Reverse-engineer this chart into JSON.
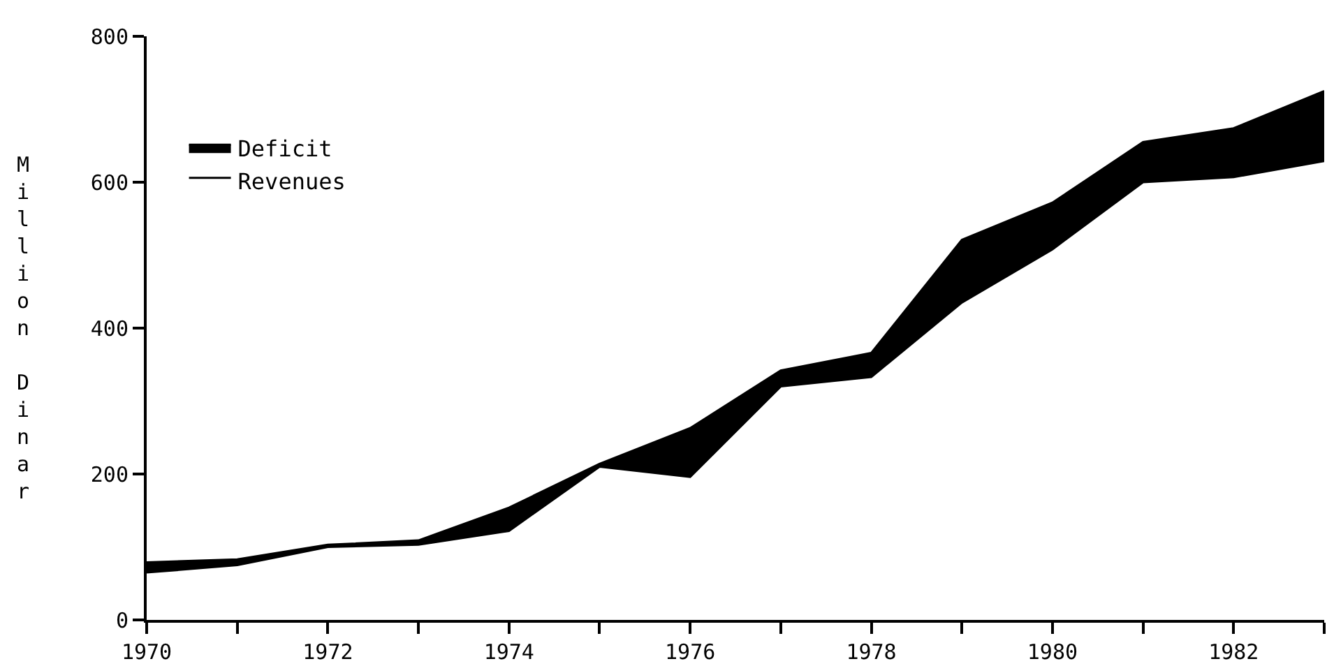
{
  "chart_data": {
    "type": "area",
    "stacked": true,
    "ylabel": "Million Dinar",
    "x": [
      1970,
      1971,
      1972,
      1973,
      1974,
      1975,
      1976,
      1977,
      1978,
      1979,
      1980,
      1981,
      1982,
      1983
    ],
    "series": [
      {
        "name": "Revenues",
        "color": "#ffffff",
        "values": [
          65,
          75,
          100,
          103,
          122,
          210,
          196,
          320,
          333,
          435,
          508,
          600,
          607,
          629
        ]
      },
      {
        "name": "Deficit",
        "color": "#000000",
        "values": [
          14,
          8,
          3,
          6,
          32,
          4,
          67,
          22,
          33,
          86,
          64,
          55,
          67,
          96
        ]
      }
    ],
    "xlim": [
      1970,
      1983
    ],
    "xticks": [
      1970,
      {
        "value": 1971,
        "label": null
      },
      1972,
      {
        "value": 1973,
        "label": null
      },
      1974,
      {
        "value": 1975,
        "label": null
      },
      1976,
      {
        "value": 1977,
        "label": null
      },
      1978,
      {
        "value": 1979,
        "label": null
      },
      1980,
      {
        "value": 1981,
        "label": null
      },
      1982,
      {
        "value": 1983,
        "label": null
      }
    ],
    "ylim": [
      0,
      800
    ],
    "yticks": [
      0,
      200,
      400,
      600,
      800
    ],
    "legend": "top left",
    "marker": "none",
    "line_style": "solid"
  }
}
